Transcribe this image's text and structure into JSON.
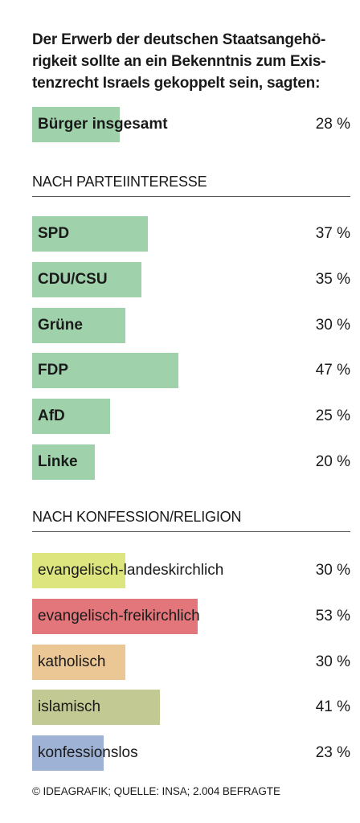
{
  "title": "Der Erwerb der deutschen Staatsangehö­rigkeit sollte an ein Bekenntnis zum Exis­tenzrecht Israels gekoppelt sein, sagten:",
  "title_lines": [
    "Der Erwerb der deutschen Staatsangehö-",
    "rigkeit sollte an ein Bekenntnis zum Exis-",
    "tenzrecht Israels gekoppelt sein, sagten:"
  ],
  "footer": "© IDEAGRAFIK; QUELLE: INSA; 2.004 BEFRAGTE",
  "chart_data": {
    "type": "bar",
    "orientation": "horizontal",
    "unit": "%",
    "max_value": 100,
    "total": {
      "label": "Bürger insgesamt",
      "value": 28,
      "value_label": "28 %",
      "color": "#9fd1ab"
    },
    "groups": [
      {
        "title": "NACH PARTEIINTERESSE",
        "bold_labels": true,
        "items": [
          {
            "label": "SPD",
            "value": 37,
            "value_label": "37 %",
            "color": "#9fd1ab"
          },
          {
            "label": "CDU/CSU",
            "value": 35,
            "value_label": "35 %",
            "color": "#9fd1ab"
          },
          {
            "label": "Grüne",
            "value": 30,
            "value_label": "30 %",
            "color": "#9fd1ab"
          },
          {
            "label": "FDP",
            "value": 47,
            "value_label": "47 %",
            "color": "#9fd1ab"
          },
          {
            "label": "AfD",
            "value": 25,
            "value_label": "25 %",
            "color": "#9fd1ab"
          },
          {
            "label": "Linke",
            "value": 20,
            "value_label": "20 %",
            "color": "#9fd1ab"
          }
        ]
      },
      {
        "title": "NACH KONFESSION/RELIGION",
        "bold_labels": false,
        "items": [
          {
            "label": "evangelisch-landeskirchlich",
            "value": 30,
            "value_label": "30 %",
            "color": "#dde57e"
          },
          {
            "label": "evangelisch-freikirchlich",
            "value": 53,
            "value_label": "53 %",
            "color": "#e2767a"
          },
          {
            "label": "katholisch",
            "value": 30,
            "value_label": "30 %",
            "color": "#ebc796"
          },
          {
            "label": "islamisch",
            "value": 41,
            "value_label": "41 %",
            "color": "#c2c992"
          },
          {
            "label": "konfessionslos",
            "value": 23,
            "value_label": "23 %",
            "color": "#9eb2d6"
          }
        ]
      }
    ]
  }
}
